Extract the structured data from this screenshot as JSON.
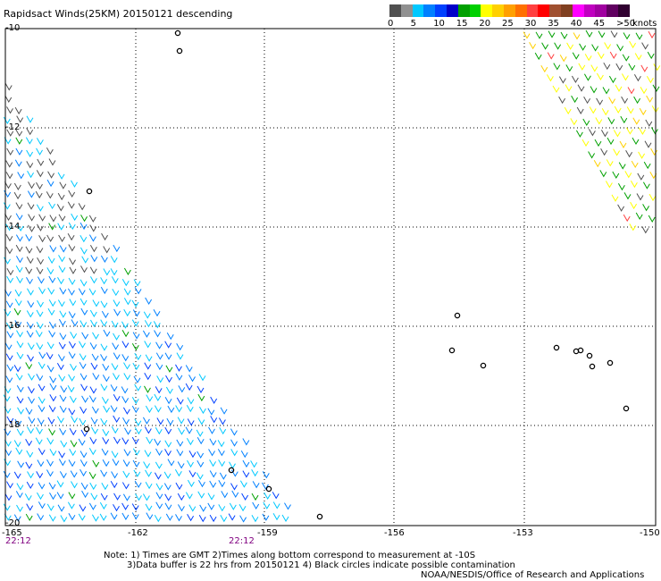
{
  "title": "Rapidsact Winds(25KM) 20150121 descending",
  "legend": {
    "unit_label": "knots",
    "bins": [
      {
        "label": "0",
        "color": "#505050"
      },
      {
        "label": "",
        "color": "#909090"
      },
      {
        "label": "5",
        "color": "#00c8ff"
      },
      {
        "label": "",
        "color": "#0080ff"
      },
      {
        "label": "10",
        "color": "#0040ff"
      },
      {
        "label": "",
        "color": "#0000c8"
      },
      {
        "label": "15",
        "color": "#00a000"
      },
      {
        "label": "",
        "color": "#00d000"
      },
      {
        "label": "20",
        "color": "#ffff00"
      },
      {
        "label": "",
        "color": "#ffd000"
      },
      {
        "label": "25",
        "color": "#ffa000"
      },
      {
        "label": "",
        "color": "#ff7000"
      },
      {
        "label": "30",
        "color": "#ff4040"
      },
      {
        "label": "",
        "color": "#ff0000"
      },
      {
        "label": "35",
        "color": "#a05030"
      },
      {
        "label": "",
        "color": "#804020"
      },
      {
        "label": "40",
        "color": "#ff00ff"
      },
      {
        "label": "",
        "color": "#c000c0"
      },
      {
        "label": "45",
        "color": "#a000a0"
      },
      {
        "label": "",
        "color": "#600060"
      },
      {
        "label": ">50",
        "color": "#300030"
      }
    ]
  },
  "axes": {
    "lat_labels": [
      "-10",
      "-12",
      "-14",
      "-16",
      "-18",
      "-20"
    ],
    "lon_labels": [
      "-165",
      "-162",
      "-159",
      "-156",
      "-153",
      "-150"
    ]
  },
  "times": [
    "22:12",
    "22:12"
  ],
  "notes": {
    "line1": "Note: 1) Times are GMT 2)Times along bottom correspond to measurement at -10S",
    "line2": "3)Data buffer is 22 hrs from 20150121 4) Black circles indicate possible contamination",
    "credit": "NOAA/NESDIS/Office of Research and Applications"
  }
}
